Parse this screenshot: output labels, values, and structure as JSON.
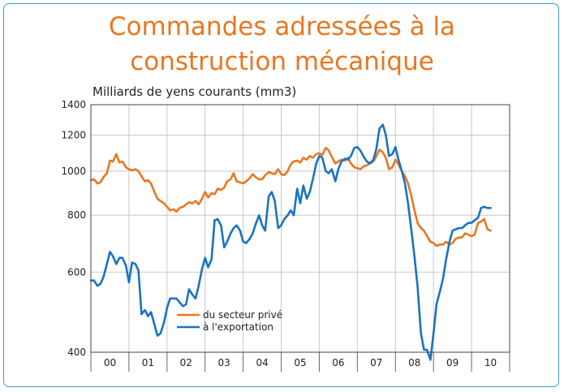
{
  "title_line1": "Commandes adressées à la",
  "title_line2": "construction mécanique",
  "chart_data": {
    "type": "line",
    "ylabel": "Milliards de yens courants (mm3)",
    "y_scale": "log",
    "ylim": [
      400,
      1400
    ],
    "yticks": [
      400,
      600,
      800,
      1000,
      1200,
      1400
    ],
    "x_categories": [
      "00",
      "01",
      "02",
      "03",
      "04",
      "05",
      "06",
      "07",
      "08",
      "09",
      "10"
    ],
    "xlim": [
      2000.0,
      2011.0
    ],
    "grid": true,
    "legend_placement": "lower-left",
    "series": [
      {
        "name": "du secteur privé",
        "color": "#e87722",
        "points": [
          [
            2000.0,
            955
          ],
          [
            2000.08,
            960
          ],
          [
            2000.17,
            940
          ],
          [
            2000.25,
            945
          ],
          [
            2000.33,
            970
          ],
          [
            2000.42,
            990
          ],
          [
            2000.5,
            1055
          ],
          [
            2000.58,
            1050
          ],
          [
            2000.67,
            1090
          ],
          [
            2000.75,
            1045
          ],
          [
            2000.83,
            1050
          ],
          [
            2000.92,
            1020
          ],
          [
            2001.0,
            1010
          ],
          [
            2001.08,
            1005
          ],
          [
            2001.17,
            1010
          ],
          [
            2001.25,
            1000
          ],
          [
            2001.33,
            975
          ],
          [
            2001.42,
            950
          ],
          [
            2001.5,
            955
          ],
          [
            2001.58,
            940
          ],
          [
            2001.67,
            900
          ],
          [
            2001.75,
            870
          ],
          [
            2001.83,
            860
          ],
          [
            2001.92,
            850
          ],
          [
            2002.0,
            835
          ],
          [
            2002.08,
            820
          ],
          [
            2002.17,
            825
          ],
          [
            2002.25,
            815
          ],
          [
            2002.33,
            830
          ],
          [
            2002.42,
            835
          ],
          [
            2002.5,
            845
          ],
          [
            2002.58,
            855
          ],
          [
            2002.67,
            850
          ],
          [
            2002.75,
            860
          ],
          [
            2002.83,
            845
          ],
          [
            2002.92,
            870
          ],
          [
            2003.0,
            900
          ],
          [
            2003.08,
            875
          ],
          [
            2003.17,
            895
          ],
          [
            2003.25,
            890
          ],
          [
            2003.33,
            915
          ],
          [
            2003.42,
            910
          ],
          [
            2003.5,
            920
          ],
          [
            2003.58,
            950
          ],
          [
            2003.67,
            960
          ],
          [
            2003.75,
            990
          ],
          [
            2003.83,
            950
          ],
          [
            2003.92,
            945
          ],
          [
            2004.0,
            940
          ],
          [
            2004.08,
            950
          ],
          [
            2004.17,
            965
          ],
          [
            2004.25,
            985
          ],
          [
            2004.33,
            970
          ],
          [
            2004.42,
            960
          ],
          [
            2004.5,
            960
          ],
          [
            2004.58,
            980
          ],
          [
            2004.67,
            995
          ],
          [
            2004.75,
            990
          ],
          [
            2004.83,
            985
          ],
          [
            2004.92,
            1010
          ],
          [
            2005.0,
            985
          ],
          [
            2005.08,
            980
          ],
          [
            2005.17,
            1000
          ],
          [
            2005.25,
            1035
          ],
          [
            2005.33,
            1050
          ],
          [
            2005.42,
            1055
          ],
          [
            2005.5,
            1045
          ],
          [
            2005.58,
            1070
          ],
          [
            2005.67,
            1060
          ],
          [
            2005.75,
            1080
          ],
          [
            2005.83,
            1070
          ],
          [
            2005.92,
            1090
          ],
          [
            2006.0,
            1095
          ],
          [
            2006.08,
            1085
          ],
          [
            2006.17,
            1125
          ],
          [
            2006.25,
            1110
          ],
          [
            2006.33,
            1075
          ],
          [
            2006.42,
            1040
          ],
          [
            2006.5,
            1050
          ],
          [
            2006.58,
            1060
          ],
          [
            2006.67,
            1055
          ],
          [
            2006.75,
            1070
          ],
          [
            2006.83,
            1040
          ],
          [
            2006.92,
            1020
          ],
          [
            2007.0,
            1015
          ],
          [
            2007.08,
            1010
          ],
          [
            2007.17,
            1025
          ],
          [
            2007.25,
            1030
          ],
          [
            2007.33,
            1040
          ],
          [
            2007.42,
            1050
          ],
          [
            2007.5,
            1080
          ],
          [
            2007.58,
            1115
          ],
          [
            2007.67,
            1100
          ],
          [
            2007.75,
            1070
          ],
          [
            2007.83,
            1010
          ],
          [
            2007.92,
            1020
          ],
          [
            2008.0,
            1060
          ],
          [
            2008.08,
            1035
          ],
          [
            2008.17,
            1000
          ],
          [
            2008.25,
            975
          ],
          [
            2008.33,
            940
          ],
          [
            2008.42,
            880
          ],
          [
            2008.5,
            820
          ],
          [
            2008.58,
            770
          ],
          [
            2008.67,
            750
          ],
          [
            2008.75,
            740
          ],
          [
            2008.83,
            720
          ],
          [
            2008.92,
            700
          ],
          [
            2009.0,
            695
          ],
          [
            2009.08,
            685
          ],
          [
            2009.17,
            690
          ],
          [
            2009.25,
            690
          ],
          [
            2009.33,
            700
          ],
          [
            2009.42,
            690
          ],
          [
            2009.5,
            695
          ],
          [
            2009.58,
            710
          ],
          [
            2009.67,
            715
          ],
          [
            2009.75,
            715
          ],
          [
            2009.83,
            730
          ],
          [
            2009.92,
            725
          ],
          [
            2010.0,
            720
          ],
          [
            2010.08,
            725
          ],
          [
            2010.17,
            770
          ],
          [
            2010.25,
            775
          ],
          [
            2010.33,
            785
          ],
          [
            2010.42,
            745
          ],
          [
            2010.5,
            740
          ]
        ]
      },
      {
        "name": "à l'exportation",
        "color": "#1a73c1",
        "points": [
          [
            2000.0,
            575
          ],
          [
            2000.08,
            575
          ],
          [
            2000.17,
            560
          ],
          [
            2000.25,
            565
          ],
          [
            2000.33,
            585
          ],
          [
            2000.42,
            625
          ],
          [
            2000.5,
            665
          ],
          [
            2000.58,
            650
          ],
          [
            2000.67,
            625
          ],
          [
            2000.75,
            645
          ],
          [
            2000.83,
            645
          ],
          [
            2000.92,
            620
          ],
          [
            2001.0,
            570
          ],
          [
            2001.08,
            630
          ],
          [
            2001.17,
            625
          ],
          [
            2001.25,
            605
          ],
          [
            2001.33,
            485
          ],
          [
            2001.42,
            495
          ],
          [
            2001.5,
            480
          ],
          [
            2001.58,
            490
          ],
          [
            2001.67,
            460
          ],
          [
            2001.75,
            435
          ],
          [
            2001.83,
            440
          ],
          [
            2001.92,
            465
          ],
          [
            2002.0,
            500
          ],
          [
            2002.08,
            525
          ],
          [
            2002.17,
            525
          ],
          [
            2002.25,
            525
          ],
          [
            2002.33,
            515
          ],
          [
            2002.42,
            505
          ],
          [
            2002.5,
            510
          ],
          [
            2002.58,
            550
          ],
          [
            2002.67,
            535
          ],
          [
            2002.75,
            525
          ],
          [
            2002.83,
            560
          ],
          [
            2002.92,
            610
          ],
          [
            2003.0,
            645
          ],
          [
            2003.08,
            615
          ],
          [
            2003.17,
            640
          ],
          [
            2003.25,
            780
          ],
          [
            2003.33,
            785
          ],
          [
            2003.42,
            760
          ],
          [
            2003.5,
            680
          ],
          [
            2003.58,
            700
          ],
          [
            2003.67,
            730
          ],
          [
            2003.75,
            750
          ],
          [
            2003.83,
            760
          ],
          [
            2003.92,
            740
          ],
          [
            2004.0,
            700
          ],
          [
            2004.08,
            695
          ],
          [
            2004.17,
            710
          ],
          [
            2004.25,
            730
          ],
          [
            2004.33,
            765
          ],
          [
            2004.42,
            800
          ],
          [
            2004.5,
            760
          ],
          [
            2004.58,
            740
          ],
          [
            2004.67,
            880
          ],
          [
            2004.75,
            900
          ],
          [
            2004.83,
            860
          ],
          [
            2004.92,
            750
          ],
          [
            2005.0,
            760
          ],
          [
            2005.08,
            785
          ],
          [
            2005.17,
            800
          ],
          [
            2005.25,
            820
          ],
          [
            2005.33,
            800
          ],
          [
            2005.42,
            915
          ],
          [
            2005.5,
            850
          ],
          [
            2005.58,
            930
          ],
          [
            2005.67,
            870
          ],
          [
            2005.75,
            900
          ],
          [
            2005.83,
            960
          ],
          [
            2005.92,
            1040
          ],
          [
            2006.0,
            1080
          ],
          [
            2006.08,
            1070
          ],
          [
            2006.17,
            1000
          ],
          [
            2006.25,
            990
          ],
          [
            2006.33,
            1010
          ],
          [
            2006.42,
            950
          ],
          [
            2006.5,
            1010
          ],
          [
            2006.58,
            1050
          ],
          [
            2006.67,
            1065
          ],
          [
            2006.75,
            1060
          ],
          [
            2006.83,
            1080
          ],
          [
            2006.92,
            1125
          ],
          [
            2007.0,
            1130
          ],
          [
            2007.08,
            1110
          ],
          [
            2007.17,
            1075
          ],
          [
            2007.25,
            1050
          ],
          [
            2007.33,
            1040
          ],
          [
            2007.42,
            1060
          ],
          [
            2007.5,
            1120
          ],
          [
            2007.58,
            1240
          ],
          [
            2007.67,
            1265
          ],
          [
            2007.75,
            1200
          ],
          [
            2007.83,
            1080
          ],
          [
            2007.92,
            1090
          ],
          [
            2008.0,
            1130
          ],
          [
            2008.08,
            1060
          ],
          [
            2008.17,
            1000
          ],
          [
            2008.25,
            940
          ],
          [
            2008.33,
            850
          ],
          [
            2008.42,
            740
          ],
          [
            2008.5,
            650
          ],
          [
            2008.58,
            560
          ],
          [
            2008.67,
            440
          ],
          [
            2008.75,
            405
          ],
          [
            2008.83,
            405
          ],
          [
            2008.92,
            385
          ],
          [
            2009.0,
            440
          ],
          [
            2009.08,
            510
          ],
          [
            2009.17,
            545
          ],
          [
            2009.25,
            580
          ],
          [
            2009.33,
            640
          ],
          [
            2009.42,
            700
          ],
          [
            2009.5,
            740
          ],
          [
            2009.58,
            745
          ],
          [
            2009.67,
            750
          ],
          [
            2009.75,
            750
          ],
          [
            2009.83,
            760
          ],
          [
            2009.92,
            770
          ],
          [
            2010.0,
            770
          ],
          [
            2010.08,
            780
          ],
          [
            2010.17,
            790
          ],
          [
            2010.25,
            830
          ],
          [
            2010.33,
            835
          ],
          [
            2010.42,
            830
          ],
          [
            2010.5,
            830
          ]
        ]
      }
    ]
  }
}
